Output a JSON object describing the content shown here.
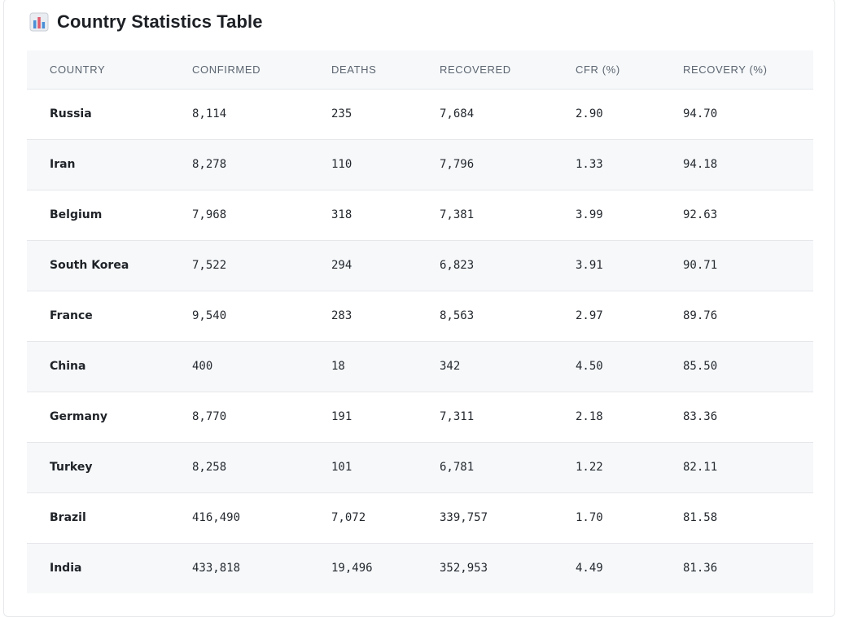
{
  "page": {
    "title": "Country Statistics Table",
    "title_icon": "bar-chart-icon"
  },
  "colors": {
    "header_bg": "#f6f8fa",
    "row_alt_bg": "#f6f8fa",
    "border": "#e5e7eb",
    "header_text": "#5c6570",
    "icon_bars": [
      "#e05a6e",
      "#4a8fd6",
      "#4a8fd6"
    ]
  },
  "table": {
    "columns": [
      "COUNTRY",
      "CONFIRMED",
      "DEATHS",
      "RECOVERED",
      "CFR (%)",
      "RECOVERY (%)"
    ],
    "rows": [
      [
        "Russia",
        "8,114",
        "235",
        "7,684",
        "2.90",
        "94.70"
      ],
      [
        "Iran",
        "8,278",
        "110",
        "7,796",
        "1.33",
        "94.18"
      ],
      [
        "Belgium",
        "7,968",
        "318",
        "7,381",
        "3.99",
        "92.63"
      ],
      [
        "South Korea",
        "7,522",
        "294",
        "6,823",
        "3.91",
        "90.71"
      ],
      [
        "France",
        "9,540",
        "283",
        "8,563",
        "2.97",
        "89.76"
      ],
      [
        "China",
        "400",
        "18",
        "342",
        "4.50",
        "85.50"
      ],
      [
        "Germany",
        "8,770",
        "191",
        "7,311",
        "2.18",
        "83.36"
      ],
      [
        "Turkey",
        "8,258",
        "101",
        "6,781",
        "1.22",
        "82.11"
      ],
      [
        "Brazil",
        "416,490",
        "7,072",
        "339,757",
        "1.70",
        "81.58"
      ],
      [
        "India",
        "433,818",
        "19,496",
        "352,953",
        "4.49",
        "81.36"
      ]
    ]
  }
}
